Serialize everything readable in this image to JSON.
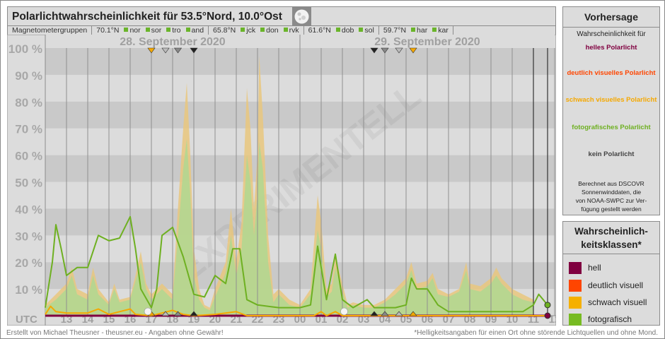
{
  "header": {
    "title": "Polarlichtwahrscheinlichkeit für  53.5°Nord, 10.0°Ost",
    "moon_icon": "moon-icon"
  },
  "magnetometer": {
    "label": "Magnetometergruppen",
    "groups": [
      {
        "lat": "70.1°N",
        "stations": [
          "nor",
          "sor",
          "tro",
          "and"
        ]
      },
      {
        "lat": "65.8°N",
        "stations": [
          "jck",
          "don",
          "rvk"
        ]
      },
      {
        "lat": "61.6°N",
        "stations": [
          "dob",
          "sol"
        ]
      },
      {
        "lat": "59.7°N",
        "stations": [
          "har",
          "kar"
        ]
      }
    ],
    "station_color": "#6ab42a"
  },
  "chart_data": {
    "type": "area",
    "dates": [
      "28. September 2020",
      "29. September 2020"
    ],
    "watermark": "EXPERIMENTELL",
    "xlabel": "UTC",
    "x_ticks": [
      "13",
      "14",
      "15",
      "16",
      "17",
      "18",
      "19",
      "20",
      "21",
      "22",
      "23",
      "00",
      "01",
      "02",
      "03",
      "04",
      "05",
      "06",
      "07",
      "08",
      "09",
      "10",
      "11",
      "12"
    ],
    "xlim": [
      "2020-09-28T12:00",
      "2020-09-29T12:00"
    ],
    "ylim": [
      0,
      100
    ],
    "y_ticks": [
      "10 %",
      "20 %",
      "30 %",
      "40 %",
      "50 %",
      "60 %",
      "70 %",
      "80 %",
      "90 %",
      "100 %"
    ],
    "now_lines": [
      "2020-09-29T11:00",
      "2020-09-29T11:40"
    ],
    "colors": {
      "hell": "#800040",
      "deutlich": "#ff4500",
      "schwach": "#f5a800",
      "fotografisch": "#6eb021",
      "area": "#b5d690",
      "area_top": "#e9c77e"
    },
    "area": [
      [
        "2020-09-28T12:00",
        4,
        3
      ],
      [
        "2020-09-28T12:30",
        8,
        6
      ],
      [
        "2020-09-28T13:00",
        12,
        10
      ],
      [
        "2020-09-28T13:15",
        18,
        15
      ],
      [
        "2020-09-28T13:30",
        10,
        8
      ],
      [
        "2020-09-28T14:00",
        8,
        6
      ],
      [
        "2020-09-28T14:15",
        18,
        15
      ],
      [
        "2020-09-28T14:30",
        10,
        8
      ],
      [
        "2020-09-28T15:00",
        5,
        4
      ],
      [
        "2020-09-28T15:15",
        12,
        10
      ],
      [
        "2020-09-28T15:30",
        6,
        5
      ],
      [
        "2020-09-28T16:00",
        7,
        6
      ],
      [
        "2020-09-28T16:15",
        15,
        13
      ],
      [
        "2020-09-28T16:30",
        24,
        20
      ],
      [
        "2020-09-28T16:45",
        12,
        10
      ],
      [
        "2020-09-28T17:00",
        8,
        6
      ],
      [
        "2020-09-28T17:30",
        12,
        10
      ],
      [
        "2020-09-28T17:45",
        10,
        8
      ],
      [
        "2020-09-28T18:00",
        8,
        6
      ],
      [
        "2020-09-28T18:15",
        40,
        30
      ],
      [
        "2020-09-28T18:30",
        70,
        55
      ],
      [
        "2020-09-28T18:40",
        87,
        66
      ],
      [
        "2020-09-28T18:50",
        60,
        45
      ],
      [
        "2020-09-28T19:00",
        25,
        15
      ],
      [
        "2020-09-28T19:15",
        10,
        6
      ],
      [
        "2020-09-28T19:30",
        4,
        3
      ],
      [
        "2020-09-28T19:45",
        3,
        2
      ],
      [
        "2020-09-28T20:00",
        10,
        7
      ],
      [
        "2020-09-28T20:30",
        20,
        16
      ],
      [
        "2020-09-28T20:45",
        40,
        30
      ],
      [
        "2020-09-28T21:00",
        20,
        15
      ],
      [
        "2020-09-28T21:15",
        35,
        25
      ],
      [
        "2020-09-28T21:30",
        85,
        60
      ],
      [
        "2020-09-28T21:40",
        70,
        50
      ],
      [
        "2020-09-28T21:50",
        40,
        30
      ],
      [
        "2020-09-28T22:00",
        60,
        45
      ],
      [
        "2020-09-28T22:05",
        97,
        65
      ],
      [
        "2020-09-28T22:15",
        75,
        55
      ],
      [
        "2020-09-28T22:30",
        30,
        20
      ],
      [
        "2020-09-28T22:45",
        8,
        5
      ],
      [
        "2020-09-28T23:00",
        10,
        8
      ],
      [
        "2020-09-28T23:15",
        8,
        6
      ],
      [
        "2020-09-28T23:30",
        6,
        4
      ],
      [
        "2020-09-29T00:00",
        4,
        3
      ],
      [
        "2020-09-29T00:30",
        10,
        8
      ],
      [
        "2020-09-29T00:50",
        45,
        32
      ],
      [
        "2020-09-29T01:00",
        35,
        25
      ],
      [
        "2020-09-29T01:15",
        10,
        7
      ],
      [
        "2020-09-29T01:30",
        12,
        9
      ],
      [
        "2020-09-29T01:40",
        22,
        18
      ],
      [
        "2020-09-29T02:00",
        12,
        9
      ],
      [
        "2020-09-29T02:15",
        4,
        3
      ],
      [
        "2020-09-29T02:30",
        5,
        4
      ],
      [
        "2020-09-29T03:00",
        4,
        3
      ],
      [
        "2020-09-29T03:30",
        4,
        3
      ],
      [
        "2020-09-29T04:00",
        6,
        5
      ],
      [
        "2020-09-29T04:30",
        10,
        8
      ],
      [
        "2020-09-29T05:00",
        14,
        12
      ],
      [
        "2020-09-29T05:15",
        20,
        17
      ],
      [
        "2020-09-29T05:30",
        12,
        10
      ],
      [
        "2020-09-29T06:00",
        13,
        11
      ],
      [
        "2020-09-29T06:15",
        16,
        14
      ],
      [
        "2020-09-29T06:30",
        10,
        8
      ],
      [
        "2020-09-29T07:00",
        8,
        7
      ],
      [
        "2020-09-29T07:30",
        10,
        9
      ],
      [
        "2020-09-29T07:50",
        20,
        17
      ],
      [
        "2020-09-29T08:00",
        12,
        10
      ],
      [
        "2020-09-29T08:30",
        11,
        9
      ],
      [
        "2020-09-29T09:00",
        14,
        12
      ],
      [
        "2020-09-29T09:15",
        18,
        15
      ],
      [
        "2020-09-29T09:30",
        14,
        12
      ],
      [
        "2020-09-29T10:00",
        10,
        8
      ],
      [
        "2020-09-29T10:30",
        8,
        6
      ],
      [
        "2020-09-29T11:00",
        6,
        5
      ]
    ],
    "series": [
      {
        "name": "fotografisch",
        "points": [
          [
            "2020-09-28T12:00",
            3
          ],
          [
            "2020-09-28T12:20",
            20
          ],
          [
            "2020-09-28T12:30",
            34
          ],
          [
            "2020-09-28T12:45",
            25
          ],
          [
            "2020-09-28T13:00",
            15
          ],
          [
            "2020-09-28T13:30",
            18
          ],
          [
            "2020-09-28T14:00",
            18
          ],
          [
            "2020-09-28T14:30",
            30
          ],
          [
            "2020-09-28T15:00",
            28
          ],
          [
            "2020-09-28T15:30",
            29
          ],
          [
            "2020-09-28T16:00",
            37
          ],
          [
            "2020-09-28T16:15",
            25
          ],
          [
            "2020-09-28T16:30",
            10
          ],
          [
            "2020-09-28T17:00",
            3
          ],
          [
            "2020-09-28T17:15",
            10
          ],
          [
            "2020-09-28T17:30",
            30
          ],
          [
            "2020-09-28T18:00",
            33
          ],
          [
            "2020-09-28T18:30",
            22
          ],
          [
            "2020-09-28T19:00",
            8
          ],
          [
            "2020-09-28T19:30",
            7
          ],
          [
            "2020-09-28T20:00",
            15
          ],
          [
            "2020-09-28T20:30",
            12
          ],
          [
            "2020-09-28T20:50",
            25
          ],
          [
            "2020-09-28T21:10",
            25
          ],
          [
            "2020-09-28T21:30",
            6
          ],
          [
            "2020-09-28T22:00",
            4
          ],
          [
            "2020-09-28T23:00",
            3
          ],
          [
            "2020-09-29T00:00",
            3
          ],
          [
            "2020-09-29T00:30",
            4
          ],
          [
            "2020-09-29T00:50",
            26
          ],
          [
            "2020-09-29T01:15",
            6
          ],
          [
            "2020-09-29T01:40",
            23
          ],
          [
            "2020-09-29T02:00",
            6
          ],
          [
            "2020-09-29T02:30",
            3
          ],
          [
            "2020-09-29T03:10",
            6
          ],
          [
            "2020-09-29T03:30",
            3
          ],
          [
            "2020-09-29T04:30",
            3
          ],
          [
            "2020-09-29T05:00",
            4
          ],
          [
            "2020-09-29T05:15",
            14
          ],
          [
            "2020-09-29T05:30",
            10
          ],
          [
            "2020-09-29T06:00",
            10
          ],
          [
            "2020-09-29T06:30",
            4
          ],
          [
            "2020-09-29T07:00",
            1.5
          ],
          [
            "2020-09-29T10:30",
            1.5
          ],
          [
            "2020-09-29T11:00",
            4
          ],
          [
            "2020-09-29T11:15",
            8
          ],
          [
            "2020-09-29T11:40",
            4
          ]
        ]
      },
      {
        "name": "schwach visuell",
        "points": [
          [
            "2020-09-28T12:00",
            0.5
          ],
          [
            "2020-09-28T12:15",
            3.5
          ],
          [
            "2020-09-28T12:30",
            1.5
          ],
          [
            "2020-09-28T13:00",
            1
          ],
          [
            "2020-09-28T14:00",
            1
          ],
          [
            "2020-09-28T14:30",
            2.5
          ],
          [
            "2020-09-28T15:00",
            0.5
          ],
          [
            "2020-09-28T15:30",
            1.5
          ],
          [
            "2020-09-28T16:00",
            2.5
          ],
          [
            "2020-09-28T16:15",
            0.5
          ],
          [
            "2020-09-28T17:00",
            0
          ],
          [
            "2020-09-28T17:30",
            1
          ],
          [
            "2020-09-28T18:00",
            2
          ],
          [
            "2020-09-28T18:30",
            0.5
          ],
          [
            "2020-09-28T19:00",
            0
          ],
          [
            "2020-09-28T20:00",
            0.5
          ],
          [
            "2020-09-28T20:30",
            1
          ],
          [
            "2020-09-28T21:00",
            1.5
          ],
          [
            "2020-09-28T21:30",
            0
          ],
          [
            "2020-09-29T00:40",
            0
          ],
          [
            "2020-09-29T01:00",
            1.5
          ],
          [
            "2020-09-29T01:15",
            0
          ],
          [
            "2020-09-29T01:40",
            1.5
          ],
          [
            "2020-09-29T02:00",
            0
          ],
          [
            "2020-09-29T11:40",
            0
          ]
        ]
      },
      {
        "name": "hell",
        "points": [
          [
            "2020-09-28T12:00",
            0
          ],
          [
            "2020-09-29T11:40",
            0
          ]
        ]
      }
    ],
    "markers": [
      {
        "time": "2020-09-28T17:00",
        "color": "#f5a800"
      },
      {
        "time": "2020-09-28T17:40",
        "color": "#bbbbbb"
      },
      {
        "time": "2020-09-28T18:15",
        "color": "#888888"
      },
      {
        "time": "2020-09-28T19:00",
        "color": "#222222"
      },
      {
        "time": "2020-09-29T03:30",
        "color": "#222222"
      },
      {
        "time": "2020-09-29T04:00",
        "color": "#888888"
      },
      {
        "time": "2020-09-29T04:40",
        "color": "#bbbbbb"
      },
      {
        "time": "2020-09-29T05:20",
        "color": "#f5a800"
      }
    ],
    "moon_markers": [
      "2020-09-28T16:50",
      "2020-09-29T02:05"
    ]
  },
  "forecast": {
    "title": "Vorhersage",
    "intro": "Wahrscheinlichkeit für",
    "classes": [
      {
        "label": "helles Polarlicht",
        "color": "#800040"
      },
      {
        "label": "deutlich visuelles Polarlicht",
        "color": "#ff4500"
      },
      {
        "label": "schwach visuelles Polarlicht",
        "color": "#f5a800"
      },
      {
        "label": "fotografisches Polarlicht",
        "color": "#6eb021"
      },
      {
        "label": "kein Polarlicht",
        "color": "#444444"
      }
    ],
    "source": [
      "Berechnet aus DSCOVR",
      "Sonnenwinddaten, die",
      "von NOAA-SWPC zur Ver-",
      "fügung gestellt werden"
    ]
  },
  "legend": {
    "title1": "Wahrscheinlich-",
    "title2": "keitsklassen*",
    "items": [
      {
        "label": "hell",
        "color": "#800040"
      },
      {
        "label": "deutlich visuell",
        "color": "#ff4500"
      },
      {
        "label": "schwach visuell",
        "color": "#f5b000"
      },
      {
        "label": "fotografisch",
        "color": "#77bb22"
      }
    ]
  },
  "footer": {
    "left": "Erstellt von Michael Theusner - theusner.eu - Angaben ohne Gewähr!",
    "right": "*Helligkeitsangaben für einen Ort ohne störende Lichtquellen und ohne Mond."
  }
}
